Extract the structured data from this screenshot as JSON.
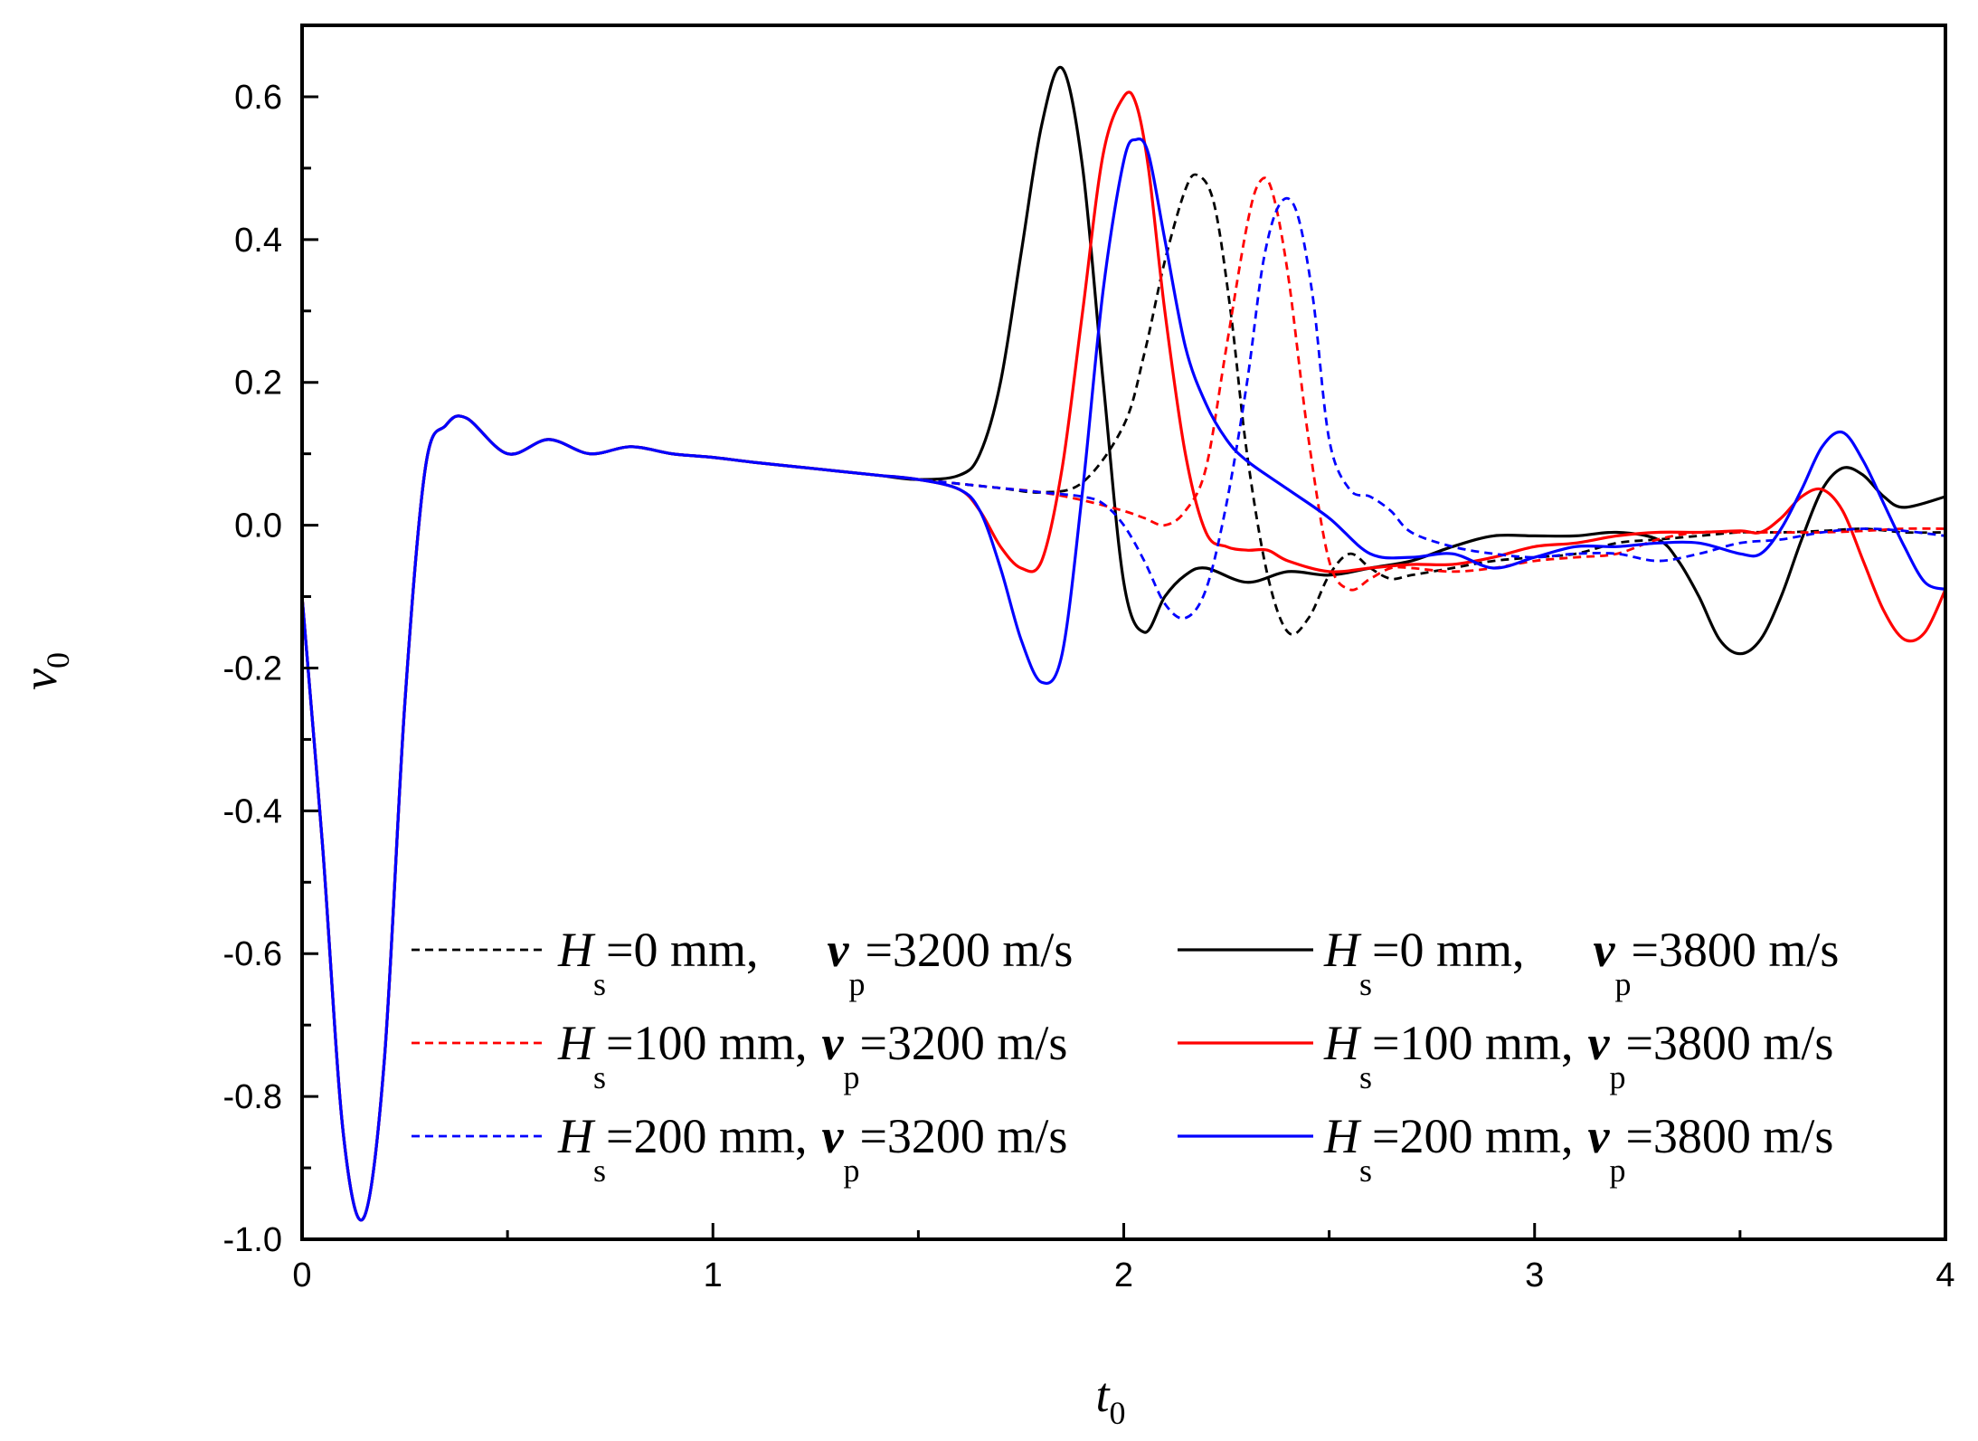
{
  "chart_data": {
    "type": "line",
    "title": "",
    "xlabel": {
      "symbol": "t",
      "sub": "0"
    },
    "ylabel": {
      "symbol": "v",
      "sub": "0"
    },
    "xlim": [
      0,
      4
    ],
    "ylim": [
      -1.0,
      0.7
    ],
    "xticks": [
      0,
      1,
      2,
      3,
      4
    ],
    "xtick_labels": [
      "0",
      "1",
      "2",
      "3",
      "4"
    ],
    "yticks": [
      -1.0,
      -0.8,
      -0.6,
      -0.4,
      -0.2,
      0.0,
      0.2,
      0.4,
      0.6
    ],
    "ytick_labels": [
      "-1.0",
      "-0.8",
      "-0.6",
      "-0.4",
      "-0.2",
      "0.0",
      "0.2",
      "0.4",
      "0.6"
    ],
    "grid": false,
    "legend_position": "bottom-right",
    "series": [
      {
        "name": "Hs=0 mm, vp=3200 m/s",
        "label": {
          "H": "H",
          "s": "s",
          "text1": "=0 mm,",
          "v": "v",
          "p": "p",
          "text2": "=3200 m/s"
        },
        "color": "#000000",
        "dash": "dashed",
        "x": [
          0,
          0.05,
          0.1,
          0.15,
          0.2,
          0.25,
          0.3,
          0.35,
          0.4,
          0.5,
          0.6,
          0.7,
          0.8,
          0.9,
          1.0,
          1.1,
          1.2,
          1.3,
          1.4,
          1.5,
          1.6,
          1.7,
          1.8,
          1.9,
          2.0,
          2.05,
          2.1,
          2.15,
          2.18,
          2.22,
          2.26,
          2.3,
          2.35,
          2.4,
          2.45,
          2.5,
          2.55,
          2.6,
          2.65,
          2.7,
          2.8,
          2.9,
          3.0,
          3.1,
          3.2,
          3.3,
          3.4,
          3.5,
          3.6,
          3.7,
          3.8,
          3.9,
          4.0
        ],
        "y": [
          -0.1,
          -0.45,
          -0.85,
          -0.97,
          -0.75,
          -0.25,
          0.08,
          0.14,
          0.15,
          0.1,
          0.12,
          0.1,
          0.11,
          0.1,
          0.095,
          0.088,
          0.082,
          0.076,
          0.07,
          0.064,
          0.058,
          0.052,
          0.046,
          0.06,
          0.14,
          0.24,
          0.37,
          0.47,
          0.49,
          0.45,
          0.3,
          0.1,
          -0.07,
          -0.15,
          -0.13,
          -0.07,
          -0.04,
          -0.06,
          -0.075,
          -0.07,
          -0.06,
          -0.05,
          -0.045,
          -0.04,
          -0.025,
          -0.02,
          -0.015,
          -0.01,
          -0.01,
          -0.008,
          -0.005,
          -0.01,
          -0.01
        ]
      },
      {
        "name": "Hs=0 mm, vp=3800 m/s",
        "label": {
          "H": "H",
          "s": "s",
          "text1": "=0 mm,",
          "v": "v",
          "p": "p",
          "text2": "=3800 m/s"
        },
        "color": "#000000",
        "dash": "solid",
        "x": [
          0,
          0.05,
          0.1,
          0.15,
          0.2,
          0.25,
          0.3,
          0.35,
          0.4,
          0.5,
          0.6,
          0.7,
          0.8,
          0.9,
          1.0,
          1.1,
          1.2,
          1.3,
          1.4,
          1.5,
          1.6,
          1.65,
          1.7,
          1.75,
          1.8,
          1.85,
          1.9,
          1.95,
          2.0,
          2.05,
          2.1,
          2.15,
          2.2,
          2.3,
          2.4,
          2.5,
          2.6,
          2.7,
          2.8,
          2.9,
          3.0,
          3.1,
          3.2,
          3.3,
          3.35,
          3.4,
          3.45,
          3.5,
          3.55,
          3.6,
          3.65,
          3.7,
          3.75,
          3.8,
          3.85,
          3.9,
          4.0
        ],
        "y": [
          -0.1,
          -0.45,
          -0.85,
          -0.97,
          -0.75,
          -0.25,
          0.08,
          0.14,
          0.15,
          0.1,
          0.12,
          0.1,
          0.11,
          0.1,
          0.095,
          0.088,
          0.082,
          0.076,
          0.07,
          0.064,
          0.07,
          0.1,
          0.2,
          0.38,
          0.56,
          0.64,
          0.5,
          0.2,
          -0.08,
          -0.15,
          -0.1,
          -0.07,
          -0.06,
          -0.08,
          -0.065,
          -0.07,
          -0.06,
          -0.05,
          -0.03,
          -0.015,
          -0.015,
          -0.015,
          -0.01,
          -0.02,
          -0.05,
          -0.1,
          -0.16,
          -0.18,
          -0.16,
          -0.1,
          -0.02,
          0.05,
          0.08,
          0.07,
          0.04,
          0.025,
          0.04
        ]
      },
      {
        "name": "Hs=100 mm, vp=3200 m/s",
        "label": {
          "H": "H",
          "s": "s",
          "text1": "=100 mm,",
          "v": "v",
          "p": "p",
          "text2": "=3200 m/s"
        },
        "color": "#ff0000",
        "dash": "dashed",
        "x": [
          0,
          0.05,
          0.1,
          0.15,
          0.2,
          0.25,
          0.3,
          0.35,
          0.4,
          0.5,
          0.6,
          0.7,
          0.8,
          0.9,
          1.0,
          1.1,
          1.2,
          1.3,
          1.4,
          1.5,
          1.6,
          1.7,
          1.8,
          1.9,
          2.0,
          2.05,
          2.1,
          2.15,
          2.2,
          2.25,
          2.3,
          2.33,
          2.36,
          2.4,
          2.45,
          2.5,
          2.55,
          2.6,
          2.65,
          2.7,
          2.8,
          2.9,
          3.0,
          3.1,
          3.2,
          3.3,
          3.4,
          3.5,
          3.6,
          3.7,
          3.8,
          3.9,
          4.0
        ],
        "y": [
          -0.1,
          -0.45,
          -0.85,
          -0.97,
          -0.75,
          -0.25,
          0.08,
          0.14,
          0.15,
          0.1,
          0.12,
          0.1,
          0.11,
          0.1,
          0.095,
          0.088,
          0.082,
          0.076,
          0.07,
          0.064,
          0.058,
          0.052,
          0.046,
          0.035,
          0.02,
          0.01,
          0.0,
          0.02,
          0.08,
          0.25,
          0.42,
          0.48,
          0.47,
          0.35,
          0.12,
          -0.05,
          -0.09,
          -0.075,
          -0.06,
          -0.06,
          -0.065,
          -0.06,
          -0.05,
          -0.045,
          -0.04,
          -0.02,
          -0.01,
          -0.01,
          -0.01,
          -0.01,
          -0.008,
          -0.005,
          -0.005
        ]
      },
      {
        "name": "Hs=100 mm, vp=3800 m/s",
        "label": {
          "H": "H",
          "s": "s",
          "text1": "=100 mm,",
          "v": "v",
          "p": "p",
          "text2": "=3800 m/s"
        },
        "color": "#ff0000",
        "dash": "solid",
        "x": [
          0,
          0.05,
          0.1,
          0.15,
          0.2,
          0.25,
          0.3,
          0.35,
          0.4,
          0.5,
          0.6,
          0.7,
          0.8,
          0.9,
          1.0,
          1.1,
          1.2,
          1.3,
          1.4,
          1.5,
          1.6,
          1.65,
          1.7,
          1.75,
          1.8,
          1.85,
          1.9,
          1.95,
          2.0,
          2.03,
          2.06,
          2.1,
          2.15,
          2.2,
          2.25,
          2.3,
          2.35,
          2.4,
          2.5,
          2.6,
          2.7,
          2.8,
          2.9,
          3.0,
          3.1,
          3.2,
          3.3,
          3.4,
          3.5,
          3.55,
          3.6,
          3.65,
          3.7,
          3.75,
          3.8,
          3.85,
          3.9,
          3.95,
          4.0
        ],
        "y": [
          -0.1,
          -0.45,
          -0.85,
          -0.97,
          -0.75,
          -0.25,
          0.08,
          0.14,
          0.15,
          0.1,
          0.12,
          0.1,
          0.11,
          0.1,
          0.095,
          0.088,
          0.082,
          0.076,
          0.07,
          0.064,
          0.05,
          0.02,
          -0.03,
          -0.06,
          -0.05,
          0.08,
          0.3,
          0.52,
          0.6,
          0.59,
          0.5,
          0.3,
          0.1,
          -0.01,
          -0.03,
          -0.035,
          -0.035,
          -0.05,
          -0.065,
          -0.06,
          -0.055,
          -0.055,
          -0.045,
          -0.03,
          -0.025,
          -0.015,
          -0.01,
          -0.01,
          -0.008,
          -0.01,
          0.01,
          0.04,
          0.05,
          0.02,
          -0.05,
          -0.12,
          -0.16,
          -0.15,
          -0.09
        ]
      },
      {
        "name": "Hs=200 mm, vp=3200 m/s",
        "label": {
          "H": "H",
          "s": "s",
          "text1": "=200 mm,",
          "v": "v",
          "p": "p",
          "text2": "=3200 m/s"
        },
        "color": "#0000ff",
        "dash": "dashed",
        "x": [
          0,
          0.05,
          0.1,
          0.15,
          0.2,
          0.25,
          0.3,
          0.35,
          0.4,
          0.5,
          0.6,
          0.7,
          0.8,
          0.9,
          1.0,
          1.1,
          1.2,
          1.3,
          1.4,
          1.5,
          1.6,
          1.7,
          1.8,
          1.9,
          1.95,
          2.0,
          2.05,
          2.1,
          2.15,
          2.2,
          2.25,
          2.3,
          2.34,
          2.38,
          2.42,
          2.46,
          2.5,
          2.55,
          2.6,
          2.65,
          2.7,
          2.8,
          2.9,
          3.0,
          3.1,
          3.2,
          3.3,
          3.4,
          3.5,
          3.6,
          3.7,
          3.8,
          3.9,
          4.0
        ],
        "y": [
          -0.1,
          -0.45,
          -0.85,
          -0.97,
          -0.75,
          -0.25,
          0.08,
          0.14,
          0.15,
          0.1,
          0.12,
          0.1,
          0.11,
          0.1,
          0.095,
          0.088,
          0.082,
          0.076,
          0.07,
          0.064,
          0.058,
          0.052,
          0.046,
          0.04,
          0.03,
          0.0,
          -0.05,
          -0.11,
          -0.13,
          -0.09,
          0.03,
          0.2,
          0.37,
          0.45,
          0.44,
          0.32,
          0.12,
          0.05,
          0.04,
          0.02,
          -0.01,
          -0.03,
          -0.04,
          -0.045,
          -0.04,
          -0.04,
          -0.05,
          -0.04,
          -0.025,
          -0.02,
          -0.01,
          -0.005,
          -0.008,
          -0.015
        ]
      },
      {
        "name": "Hs=200 mm, vp=3800 m/s",
        "label": {
          "H": "H",
          "s": "s",
          "text1": "=200 mm,",
          "v": "v",
          "p": "p",
          "text2": "=3800 m/s"
        },
        "color": "#0000ff",
        "dash": "solid",
        "x": [
          0,
          0.05,
          0.1,
          0.15,
          0.2,
          0.25,
          0.3,
          0.35,
          0.4,
          0.5,
          0.6,
          0.7,
          0.8,
          0.9,
          1.0,
          1.1,
          1.2,
          1.3,
          1.4,
          1.5,
          1.6,
          1.65,
          1.7,
          1.75,
          1.8,
          1.85,
          1.9,
          1.95,
          2.0,
          2.03,
          2.06,
          2.1,
          2.15,
          2.2,
          2.25,
          2.3,
          2.4,
          2.5,
          2.6,
          2.7,
          2.8,
          2.9,
          3.0,
          3.1,
          3.2,
          3.3,
          3.4,
          3.5,
          3.55,
          3.6,
          3.65,
          3.7,
          3.75,
          3.8,
          3.85,
          3.9,
          3.95,
          4.0
        ],
        "y": [
          -0.1,
          -0.45,
          -0.85,
          -0.97,
          -0.75,
          -0.25,
          0.08,
          0.14,
          0.15,
          0.1,
          0.12,
          0.1,
          0.11,
          0.1,
          0.095,
          0.088,
          0.082,
          0.076,
          0.07,
          0.064,
          0.05,
          0.02,
          -0.06,
          -0.16,
          -0.22,
          -0.18,
          0.05,
          0.33,
          0.51,
          0.54,
          0.52,
          0.4,
          0.25,
          0.17,
          0.12,
          0.09,
          0.05,
          0.01,
          -0.04,
          -0.045,
          -0.04,
          -0.06,
          -0.045,
          -0.03,
          -0.03,
          -0.025,
          -0.025,
          -0.04,
          -0.04,
          -0.005,
          0.05,
          0.11,
          0.13,
          0.09,
          0.03,
          -0.03,
          -0.08,
          -0.09
        ]
      }
    ]
  }
}
